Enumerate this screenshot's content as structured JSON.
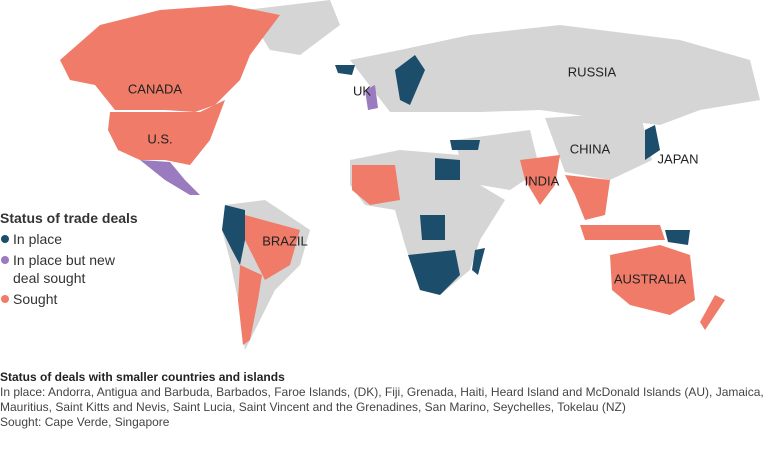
{
  "map": {
    "country_labels": [
      "CANADA",
      "U.S.",
      "BRAZIL",
      "UK",
      "RUSSIA",
      "CHINA",
      "INDIA",
      "JAPAN",
      "AUSTRALIA"
    ],
    "legend": {
      "title": "Status of trade deals",
      "items": [
        {
          "label": "In place",
          "color": "#1c4d6b"
        },
        {
          "label": "In place but new deal sought",
          "color": "#9a7bbf"
        },
        {
          "label": "Sought",
          "color": "#ef7b68"
        }
      ]
    },
    "colors": {
      "other": "#d5d5d5"
    }
  },
  "footnote": {
    "title": "Status of deals with smaller countries and islands",
    "lines": [
      "In place: Andorra, Antigua and Barbuda, Barbados, Faroe Islands, (DK), Fiji, Grenada, Haiti, Heard Island and McDonald Islands (AU), Jamaica, Mauritius, Saint Kitts and Nevis, Saint Lucia, Saint Vincent and the Grenadines, San Marino, Seychelles, Tokelau (NZ)",
      "Sought: Cape Verde, Singapore"
    ]
  }
}
